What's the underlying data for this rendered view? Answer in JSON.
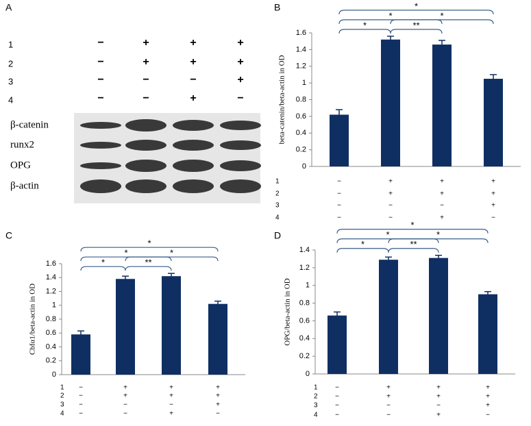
{
  "blot": {
    "label": "A",
    "conditions": {
      "labels": [
        "1",
        "2",
        "3",
        "4"
      ],
      "signs": [
        [
          "−",
          "+",
          "+",
          "+"
        ],
        [
          "−",
          "+",
          "+",
          "+"
        ],
        [
          "−",
          "−",
          "−",
          "+"
        ],
        [
          "−",
          "−",
          "+",
          "−"
        ]
      ]
    },
    "proteins": [
      "β-catenin",
      "runx2",
      "OPG",
      "β-actin"
    ]
  },
  "chart_data": [
    {
      "type": "bar",
      "label": "B",
      "ylabel": "beta-catenin/beta-actin in OD",
      "color": "#0f2f63",
      "values": [
        0.62,
        1.52,
        1.46,
        1.05
      ],
      "errors": [
        0.06,
        0.04,
        0.05,
        0.05
      ],
      "ylim": [
        0,
        1.6
      ],
      "yticks": [
        0,
        0.2,
        0.4,
        0.6,
        0.8,
        1,
        1.2,
        1.4,
        1.6
      ],
      "brackets": [
        {
          "between": [
            0,
            1
          ],
          "label": "*"
        },
        {
          "between": [
            1,
            2
          ],
          "label": "**"
        },
        {
          "between": [
            0,
            2
          ],
          "label": "*"
        },
        {
          "between": [
            1,
            3
          ],
          "label": "*"
        },
        {
          "between": [
            0,
            3
          ],
          "label": "*"
        }
      ],
      "conditions": {
        "labels": [
          "1",
          "2",
          "3",
          "4"
        ],
        "signs": [
          [
            "−",
            "+",
            "+",
            "+"
          ],
          [
            "−",
            "+",
            "+",
            "+"
          ],
          [
            "−",
            "−",
            "−",
            "+"
          ],
          [
            "−",
            "−",
            "+",
            "−"
          ]
        ]
      }
    },
    {
      "type": "bar",
      "label": "C",
      "ylabel": "Cbfα1/beta-actin in OD",
      "color": "#0f2f63",
      "values": [
        0.58,
        1.38,
        1.42,
        1.02
      ],
      "errors": [
        0.05,
        0.04,
        0.04,
        0.04
      ],
      "ylim": [
        0,
        1.6
      ],
      "yticks": [
        0,
        0.2,
        0.4,
        0.6,
        0.8,
        1,
        1.2,
        1.4,
        1.6
      ],
      "brackets": [
        {
          "between": [
            0,
            1
          ],
          "label": "*"
        },
        {
          "between": [
            1,
            2
          ],
          "label": "**"
        },
        {
          "between": [
            0,
            2
          ],
          "label": "*"
        },
        {
          "between": [
            1,
            3
          ],
          "label": "*"
        },
        {
          "between": [
            0,
            3
          ],
          "label": "*"
        }
      ],
      "conditions": {
        "labels": [
          "1",
          "2",
          "3",
          "4"
        ],
        "signs": [
          [
            "−",
            "+",
            "+",
            "+"
          ],
          [
            "−",
            "+",
            "+",
            "+"
          ],
          [
            "−",
            "−",
            "−",
            "+"
          ],
          [
            "−",
            "−",
            "+",
            "−"
          ]
        ]
      }
    },
    {
      "type": "bar",
      "label": "D",
      "ylabel": "OPG/beta-actin in OD",
      "color": "#0f2f63",
      "values": [
        0.66,
        1.29,
        1.31,
        0.9
      ],
      "errors": [
        0.04,
        0.03,
        0.03,
        0.03
      ],
      "ylim": [
        0,
        1.4
      ],
      "yticks": [
        0,
        0.2,
        0.4,
        0.6,
        0.8,
        1,
        1.2,
        1.4
      ],
      "brackets": [
        {
          "between": [
            0,
            1
          ],
          "label": "*"
        },
        {
          "between": [
            1,
            2
          ],
          "label": "**"
        },
        {
          "between": [
            0,
            2
          ],
          "label": "*"
        },
        {
          "between": [
            1,
            3
          ],
          "label": "*"
        },
        {
          "between": [
            0,
            3
          ],
          "label": "*"
        }
      ],
      "conditions": {
        "labels": [
          "1",
          "2",
          "3",
          "4"
        ],
        "signs": [
          [
            "−",
            "+",
            "+",
            "+"
          ],
          [
            "−",
            "+",
            "+",
            "+"
          ],
          [
            "−",
            "−",
            "−",
            "+"
          ],
          [
            "−",
            "−",
            "+",
            "−"
          ]
        ]
      }
    }
  ]
}
